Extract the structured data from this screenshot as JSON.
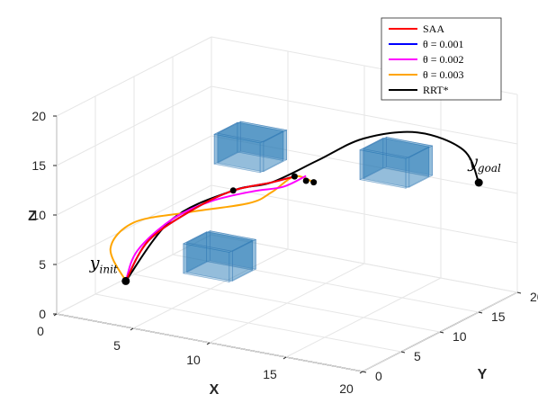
{
  "chart_data": {
    "type": "line",
    "dimensions": 3,
    "axes": {
      "x": {
        "label": "X",
        "lim": [
          0,
          20
        ],
        "ticks": [
          "0",
          "5",
          "10",
          "15",
          "20"
        ]
      },
      "y": {
        "label": "Y",
        "lim": [
          0,
          20
        ],
        "ticks": [
          "0",
          "5",
          "10",
          "15",
          "20"
        ]
      },
      "z": {
        "label": "Z",
        "lim": [
          0,
          20
        ],
        "ticks": [
          "0",
          "5",
          "10",
          "15",
          "20"
        ]
      }
    },
    "grid": true,
    "legend_position": "top-right",
    "series": [
      {
        "name": "SAA",
        "color": "#ff0000",
        "points": [
          [
            3,
            3,
            3
          ],
          [
            4,
            4,
            7
          ],
          [
            6,
            6,
            10
          ],
          [
            8,
            7,
            12
          ],
          [
            10,
            8,
            13
          ],
          [
            11,
            9,
            13.5
          ]
        ]
      },
      {
        "name": "θ = 0.001",
        "color": "#0000ff",
        "points": [
          [
            3,
            3,
            3
          ],
          [
            4,
            4,
            7
          ],
          [
            6,
            6,
            10
          ],
          [
            8,
            7,
            12
          ],
          [
            10,
            8,
            13
          ],
          [
            11,
            9,
            13.5
          ]
        ]
      },
      {
        "name": "θ = 0.002",
        "color": "#ff00ff",
        "points": [
          [
            3,
            3,
            3
          ],
          [
            3.5,
            3.5,
            6
          ],
          [
            5,
            5,
            9
          ],
          [
            7,
            6,
            11
          ],
          [
            9,
            7.5,
            12
          ],
          [
            10.5,
            8.5,
            12.5
          ],
          [
            11.5,
            9.5,
            13.5
          ]
        ]
      },
      {
        "name": "θ = 0.003",
        "color": "#ffa500",
        "points": [
          [
            3,
            3,
            3
          ],
          [
            2,
            3,
            6
          ],
          [
            3,
            4,
            8.5
          ],
          [
            6,
            5,
            10
          ],
          [
            9,
            7,
            11
          ],
          [
            10,
            8,
            12
          ],
          [
            11,
            9,
            13.5
          ],
          [
            12,
            9.5,
            13
          ]
        ]
      },
      {
        "name": "RRT*",
        "color": "#000000",
        "points": [
          [
            3,
            3,
            3
          ],
          [
            5,
            5,
            9
          ],
          [
            8,
            7,
            12
          ],
          [
            10,
            8,
            13
          ],
          [
            12,
            10,
            15
          ],
          [
            14,
            12,
            17
          ],
          [
            16,
            15,
            17
          ],
          [
            18,
            17,
            15
          ],
          [
            19,
            17,
            12
          ]
        ]
      }
    ],
    "markers": [
      {
        "label": "y",
        "sub": "init",
        "point": [
          3,
          3,
          3
        ]
      },
      {
        "label": "y",
        "sub": "goal",
        "point": [
          19,
          17,
          12
        ]
      }
    ],
    "intermediate_points": [
      [
        8,
        7,
        12
      ],
      [
        11,
        9,
        13.5
      ],
      [
        11.5,
        9.5,
        13
      ],
      [
        12,
        9.5,
        13
      ]
    ],
    "obstacles": [
      {
        "center": [
          7,
          7,
          5
        ],
        "size": 3,
        "color": "#1f77b4"
      },
      {
        "center": [
          7.5,
          10,
          15
        ],
        "size": 3,
        "color": "#1f77b4"
      },
      {
        "center": [
          15,
          14,
          14
        ],
        "size": 3,
        "color": "#1f77b4"
      }
    ]
  }
}
